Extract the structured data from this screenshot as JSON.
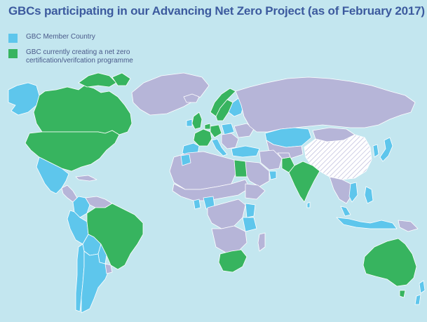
{
  "title": "GBCs participating in our Advancing Net Zero Project (as of February 2017)",
  "legend": {
    "items": [
      {
        "label": "GBC Member Country",
        "color": "#5ec6ec"
      },
      {
        "label": "GBC currently creating a net zero certification/verifcation programme",
        "color": "#37b45f"
      }
    ]
  },
  "colors": {
    "ocean": "#c3e6ef",
    "other_country": "#b6b5d8",
    "member": "#5ec6ec",
    "net_zero": "#37b45f",
    "hatched_region": "#ffffff",
    "border": "#ffffff"
  }
}
